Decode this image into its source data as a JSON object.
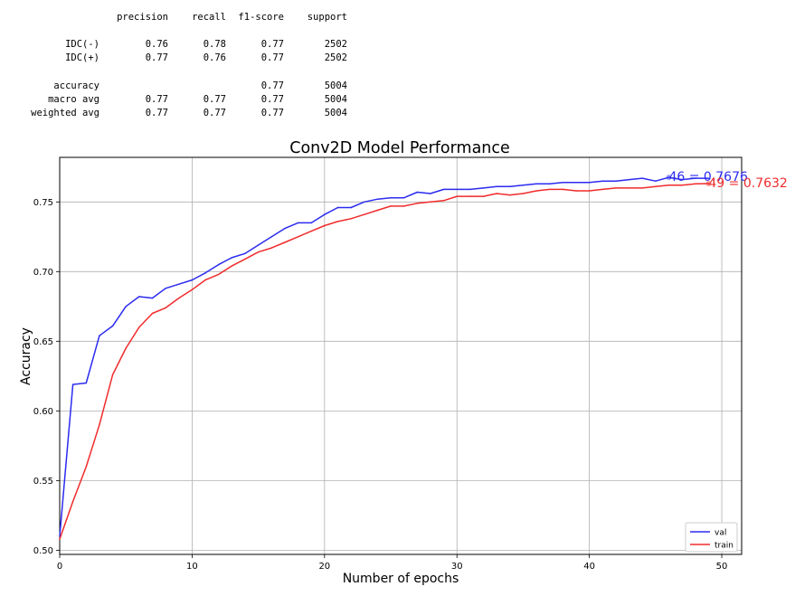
{
  "report": {
    "columns": [
      "precision",
      "recall",
      "f1-score",
      "support"
    ],
    "class_rows": [
      {
        "label": "IDC(-)",
        "precision": "0.76",
        "recall": "0.78",
        "f1": "0.77",
        "support": "2502"
      },
      {
        "label": "IDC(+)",
        "precision": "0.77",
        "recall": "0.76",
        "f1": "0.77",
        "support": "2502"
      }
    ],
    "summary_rows": [
      {
        "label": "accuracy",
        "precision": "",
        "recall": "",
        "f1": "0.77",
        "support": "5004"
      },
      {
        "label": "macro avg",
        "precision": "0.77",
        "recall": "0.77",
        "f1": "0.77",
        "support": "5004"
      },
      {
        "label": "weighted avg",
        "precision": "0.77",
        "recall": "0.77",
        "f1": "0.77",
        "support": "5004"
      }
    ]
  },
  "chart_data": {
    "type": "line",
    "title": "Conv2D Model Performance",
    "xlabel": "Number of epochs",
    "ylabel": "Accuracy",
    "xlim": [
      0,
      51.5
    ],
    "ylim": [
      0.497,
      0.782
    ],
    "xticks": [
      0,
      10,
      20,
      30,
      40,
      50
    ],
    "yticks": [
      0.5,
      0.55,
      0.6,
      0.65,
      0.7,
      0.75
    ],
    "ytick_labels": [
      "0.50",
      "0.55",
      "0.60",
      "0.65",
      "0.70",
      "0.75"
    ],
    "grid": true,
    "legend_position": "lower-right",
    "series": [
      {
        "name": "val",
        "color": "#2b2bf0",
        "values": [
          0.51,
          0.619,
          0.62,
          0.654,
          0.661,
          0.675,
          0.682,
          0.681,
          0.688,
          0.691,
          0.694,
          0.699,
          0.705,
          0.71,
          0.713,
          0.719,
          0.725,
          0.731,
          0.735,
          0.735,
          0.741,
          0.746,
          0.746,
          0.75,
          0.752,
          0.753,
          0.753,
          0.757,
          0.756,
          0.759,
          0.759,
          0.759,
          0.76,
          0.761,
          0.761,
          0.762,
          0.763,
          0.763,
          0.764,
          0.764,
          0.764,
          0.765,
          0.765,
          0.766,
          0.767,
          0.765,
          0.7676,
          0.766,
          0.767,
          0.767
        ]
      },
      {
        "name": "train",
        "color": "#f02b2b",
        "values": [
          0.508,
          0.535,
          0.56,
          0.59,
          0.626,
          0.645,
          0.66,
          0.67,
          0.674,
          0.681,
          0.687,
          0.694,
          0.698,
          0.704,
          0.709,
          0.714,
          0.717,
          0.721,
          0.725,
          0.729,
          0.733,
          0.736,
          0.738,
          0.741,
          0.744,
          0.747,
          0.747,
          0.749,
          0.75,
          0.751,
          0.754,
          0.754,
          0.754,
          0.756,
          0.755,
          0.756,
          0.758,
          0.759,
          0.759,
          0.758,
          0.758,
          0.759,
          0.76,
          0.76,
          0.76,
          0.761,
          0.762,
          0.762,
          0.763,
          0.7632
        ]
      }
    ],
    "annotations": [
      {
        "text": "46 = 0.7676",
        "x": 46,
        "y": 0.7676,
        "color": "#2b2bf0"
      },
      {
        "text": "49 = 0.7632",
        "x": 49,
        "y": 0.7632,
        "color": "#f02b2b"
      }
    ]
  }
}
